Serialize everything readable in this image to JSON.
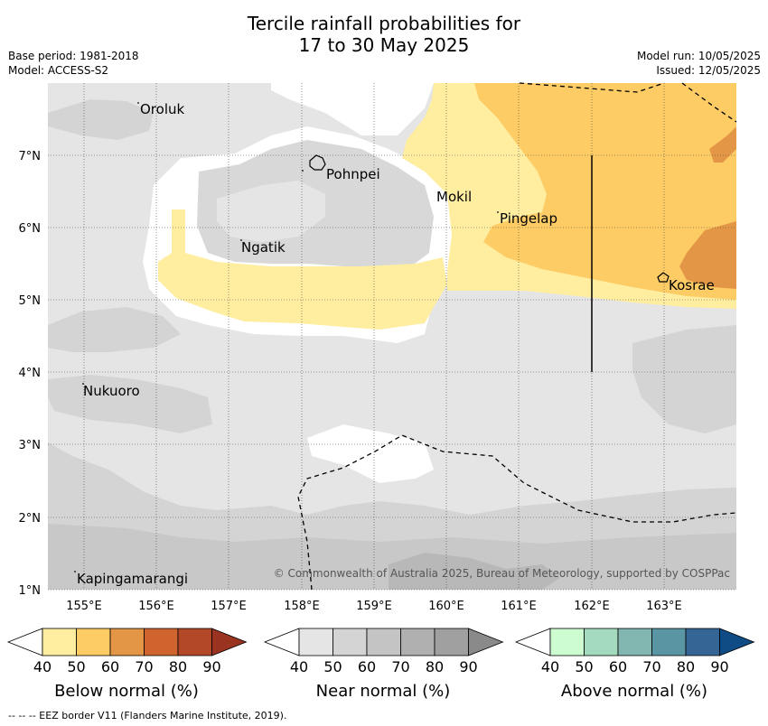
{
  "title": {
    "line1": "Tercile rainfall probabilities for",
    "line2": "17 to 30 May 2025"
  },
  "meta": {
    "base_period": "Base period: 1981-2018",
    "model": "Model: ACCESS-S2",
    "model_run": "Model run: 10/05/2025",
    "issued": "Issued: 12/05/2025"
  },
  "places": [
    {
      "name": "Oroluk"
    },
    {
      "name": "Pohnpei"
    },
    {
      "name": "Mokil"
    },
    {
      "name": "Pingelap"
    },
    {
      "name": "Ngatik"
    },
    {
      "name": "Kosrae"
    },
    {
      "name": "Nukuoro"
    },
    {
      "name": "Kapingamarangi"
    }
  ],
  "axes": {
    "lat_ticks": [
      "7°N",
      "6°N",
      "5°N",
      "4°N",
      "3°N",
      "2°N",
      "1°N"
    ],
    "lon_ticks": [
      "155°E",
      "156°E",
      "157°E",
      "158°E",
      "159°E",
      "160°E",
      "161°E",
      "162°E",
      "163°E"
    ]
  },
  "colorbars": [
    {
      "label": "Below normal (%)",
      "ticks": [
        "40",
        "50",
        "60",
        "70",
        "80",
        "90"
      ],
      "colors": [
        "#ffffff",
        "#ffeda0",
        "#fecc65",
        "#e39646",
        "#d0642f",
        "#b34829",
        "#9a3320"
      ]
    },
    {
      "label": "Near normal (%)",
      "ticks": [
        "40",
        "50",
        "60",
        "70",
        "80",
        "90"
      ],
      "colors": [
        "#ffffff",
        "#e5e5e5",
        "#d4d4d4",
        "#c4c4c4",
        "#b0b0b0",
        "#a0a0a0",
        "#8a8a8a"
      ]
    },
    {
      "label": "Above normal (%)",
      "ticks": [
        "40",
        "50",
        "60",
        "70",
        "80",
        "90"
      ],
      "colors": [
        "#ffffff",
        "#ccfcd0",
        "#a4dbbf",
        "#82b7b1",
        "#5a95a3",
        "#346594",
        "#0f4c85"
      ]
    }
  ],
  "copyright": "© Commonwealth of Australia 2025, Bureau of Meteorology, supported by COSPPac",
  "footer": "-- -- -- EEZ border V11 (Flanders Marine Institute, 2019)."
}
